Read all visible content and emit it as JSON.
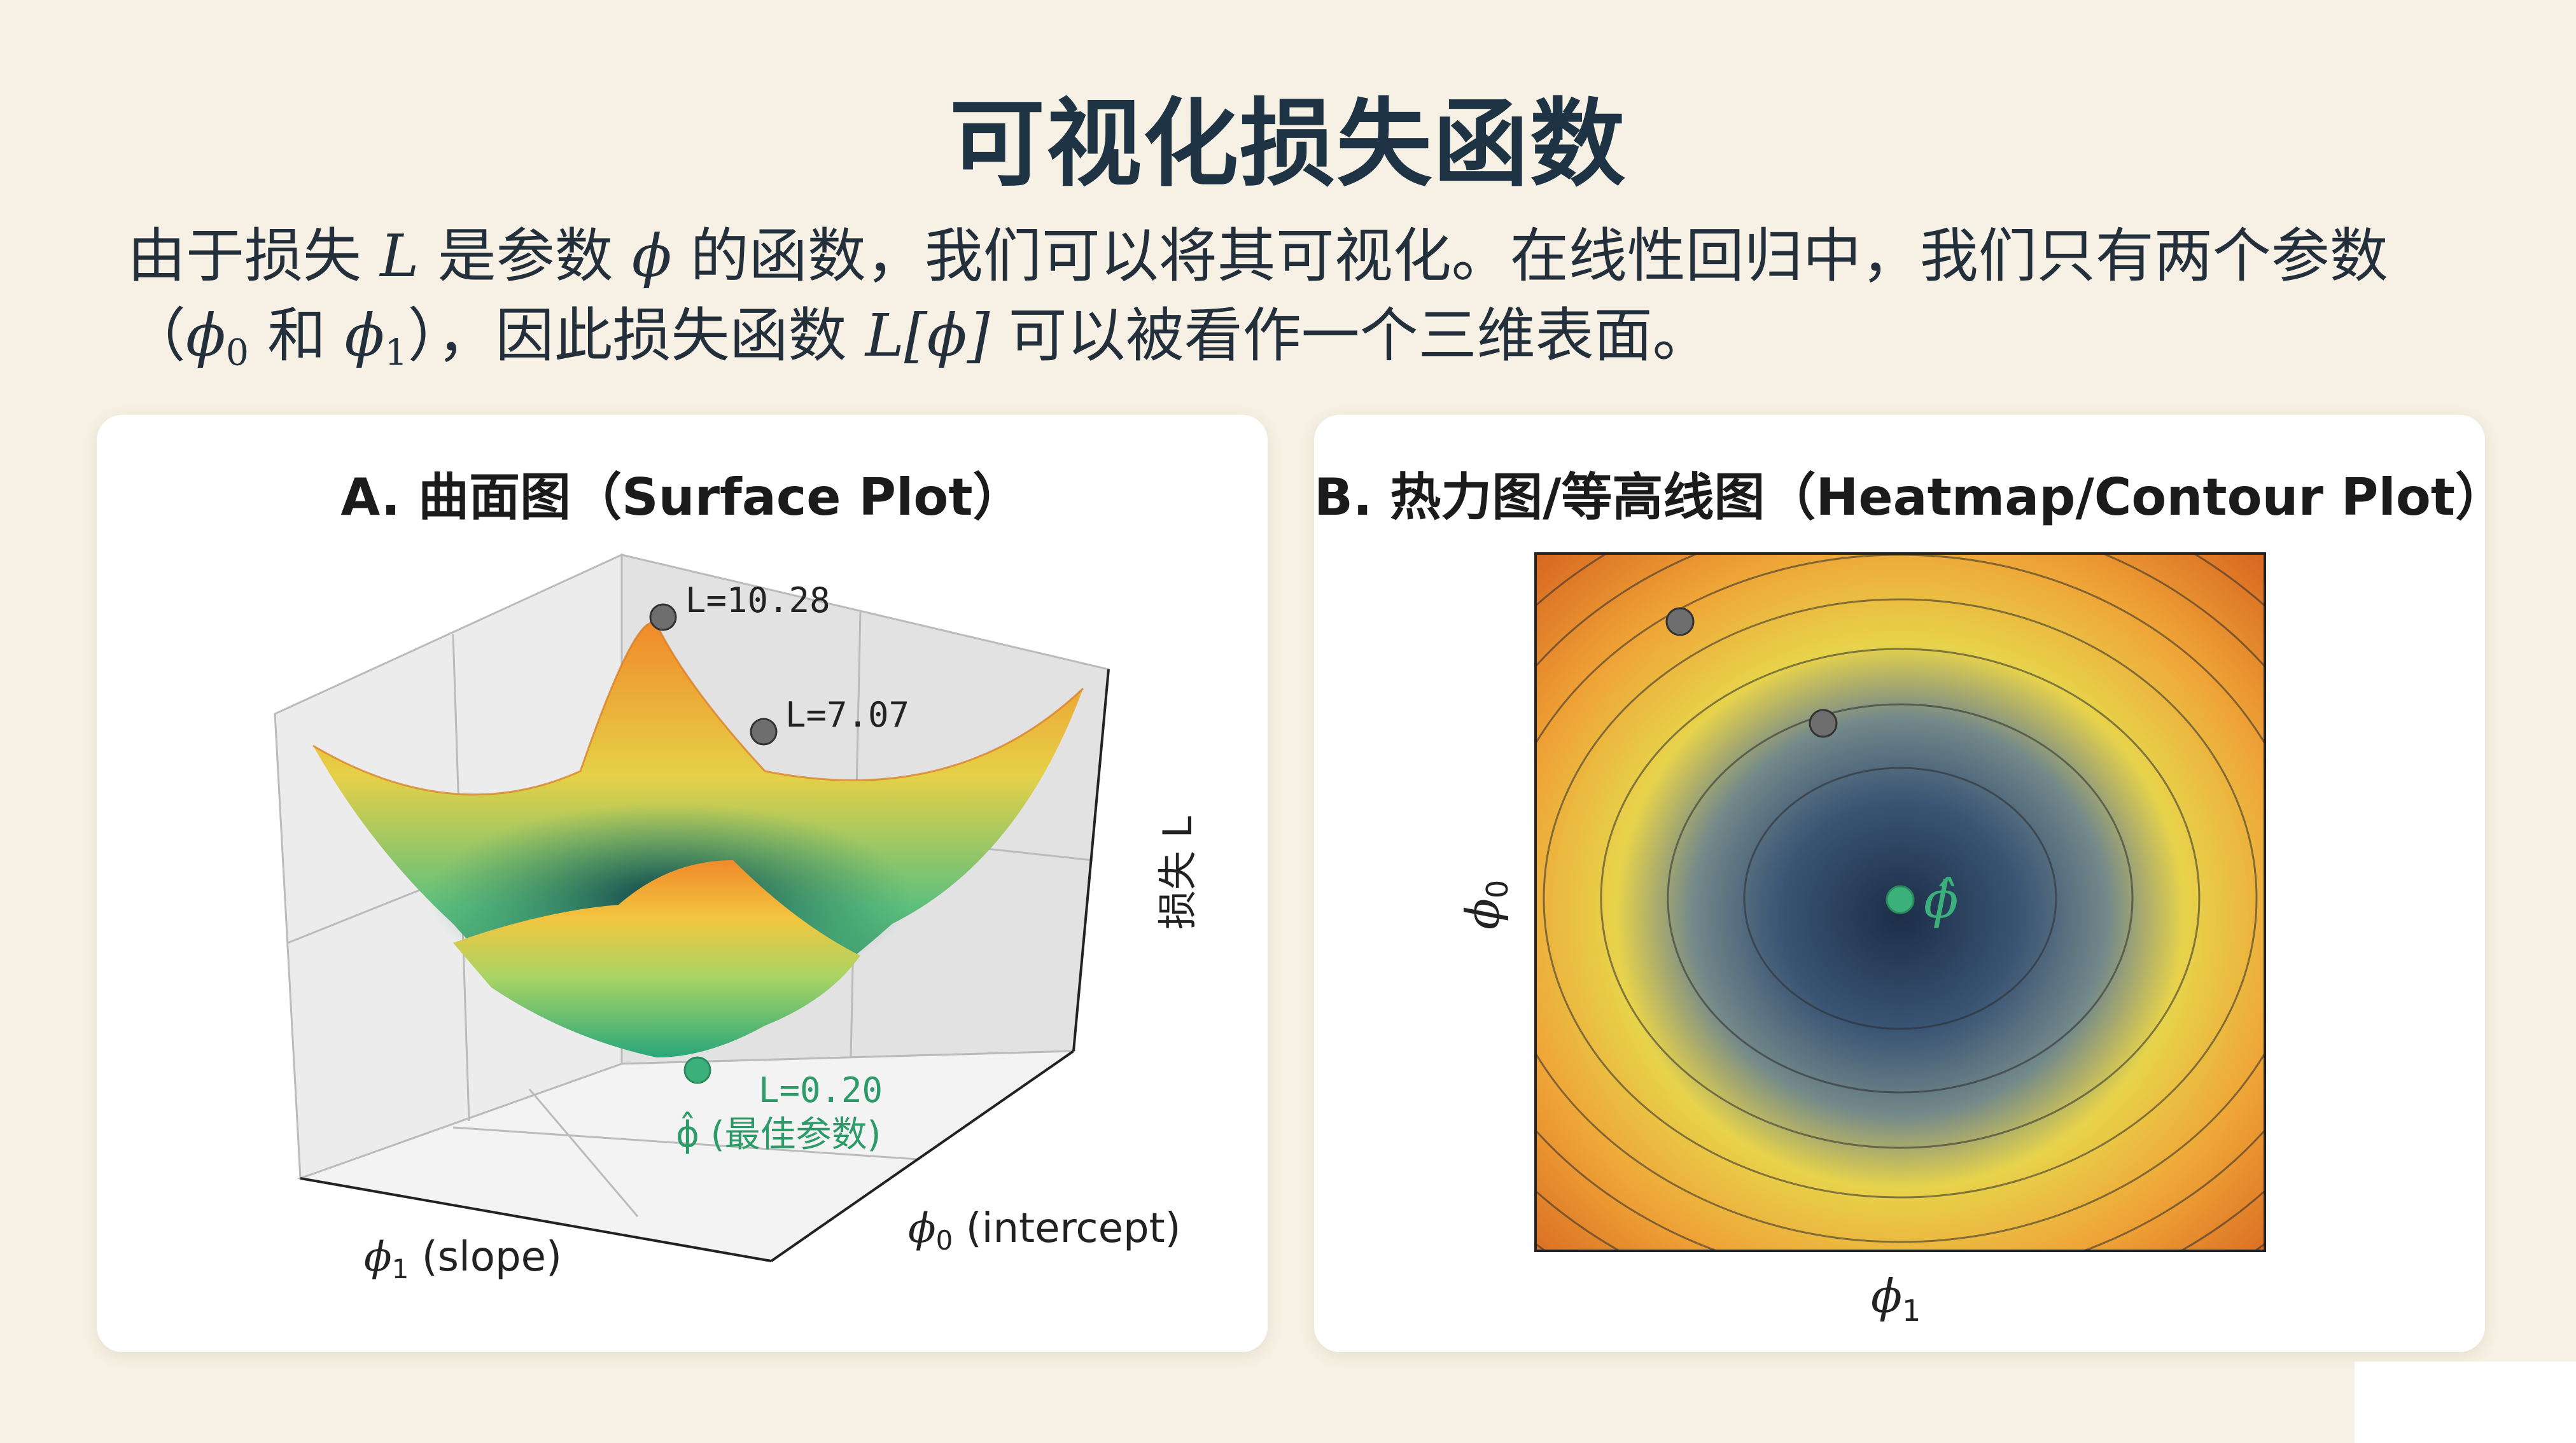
{
  "title": "可视化损失函数",
  "intro": {
    "l1_a": "由于损失 ",
    "L": "L",
    "l1_b": " 是参数 ",
    "phi": "ϕ",
    "l1_c": " 的函数，我们可以将其可视化。在线性回归中，我们只有两个参数",
    "l2_a": "（",
    "sub0": "0",
    "l2_b": " 和 ",
    "sub1": "1",
    "l2_c": "），因此损失函数 ",
    "Lphi": "L[ϕ]",
    "l2_d": " 可以被看作一个三维表面。"
  },
  "panel_a": {
    "title": "A. 曲面图（Surface Plot）",
    "z_label": "损失 L",
    "x_label_sym": "ϕ",
    "x_label_sub": "1",
    "x_label_text": " (slope)",
    "y_label_sym": "ϕ",
    "y_label_sub": "0",
    "y_label_text": " (intercept)",
    "points": [
      {
        "label": "L=10.28",
        "color": "#6e6e6e"
      },
      {
        "label": "L=7.07",
        "color": "#6e6e6e"
      },
      {
        "label": "L=0.20",
        "color": "#3bb07a"
      }
    ],
    "best_label": "ϕ̂ (最佳参数)"
  },
  "panel_b": {
    "title": "B. 热力图/等高线图（Heatmap/Contour Plot）",
    "x_label_sym": "ϕ",
    "x_label_sub": "1",
    "y_label_sym": "ϕ",
    "y_label_sub": "0",
    "best_label": "ϕ̂",
    "colors": {
      "low": "#1f3550",
      "mid": "#e9d24a",
      "high": "#d9641b",
      "best": "#3bb07a"
    }
  }
}
